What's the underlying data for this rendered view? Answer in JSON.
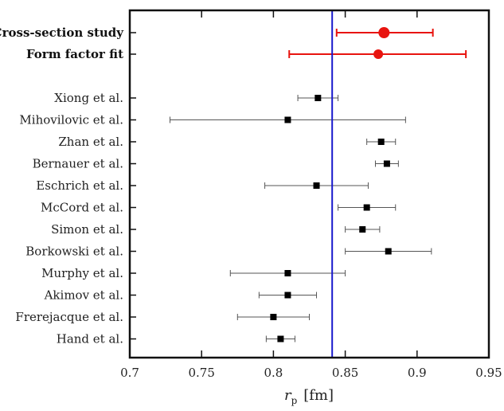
{
  "chart_data": {
    "type": "scatter",
    "subtype": "forest-plot-horizontal-errorbars",
    "title": "",
    "xlabel_symbol": "r",
    "xlabel_subscript": "p",
    "xlabel_unit": "[fm]",
    "xlim": [
      0.7,
      0.95
    ],
    "xticks": [
      0.7,
      0.75,
      0.8,
      0.85,
      0.9,
      0.95
    ],
    "xtick_labels": [
      "0.7",
      "0.75",
      "0.8",
      "0.85",
      "0.9",
      "0.95"
    ],
    "reference_line": {
      "x": 0.8409,
      "color": "#1a1acc"
    },
    "grid": false,
    "legend": "none",
    "highlight_color": "#e8140f",
    "point_color": "#000000",
    "bar_color": "#555555",
    "highlighted": [
      {
        "label": "Cross-section study",
        "value": 0.877,
        "low": 0.844,
        "high": 0.911
      },
      {
        "label": "Form factor fit",
        "value": 0.873,
        "low": 0.811,
        "high": 0.934
      }
    ],
    "points": [
      {
        "label": "Xiong et al.",
        "value": 0.831,
        "low": 0.817,
        "high": 0.845
      },
      {
        "label": "Mihovilovic et al.",
        "value": 0.81,
        "low": 0.728,
        "high": 0.892
      },
      {
        "label": "Zhan et al.",
        "value": 0.875,
        "low": 0.865,
        "high": 0.885
      },
      {
        "label": "Bernauer et al.",
        "value": 0.879,
        "low": 0.871,
        "high": 0.887
      },
      {
        "label": "Eschrich et al.",
        "value": 0.83,
        "low": 0.794,
        "high": 0.866
      },
      {
        "label": "McCord et al.",
        "value": 0.865,
        "low": 0.845,
        "high": 0.885
      },
      {
        "label": "Simon et al.",
        "value": 0.862,
        "low": 0.85,
        "high": 0.874
      },
      {
        "label": "Borkowski et al.",
        "value": 0.88,
        "low": 0.85,
        "high": 0.91
      },
      {
        "label": "Murphy et al.",
        "value": 0.81,
        "low": 0.77,
        "high": 0.85
      },
      {
        "label": "Akimov et al.",
        "value": 0.81,
        "low": 0.79,
        "high": 0.83
      },
      {
        "label": "Frerejacque et al.",
        "value": 0.8,
        "low": 0.775,
        "high": 0.825
      },
      {
        "label": "Hand et al.",
        "value": 0.805,
        "low": 0.795,
        "high": 0.815
      }
    ]
  }
}
